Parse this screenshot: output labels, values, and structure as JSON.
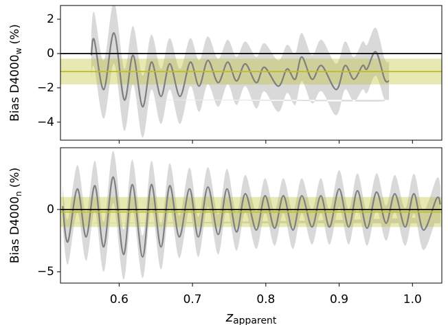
{
  "chart_data": [
    {
      "type": "line",
      "ylabel": [
        "Bias D4000",
        "w",
        "(%)"
      ],
      "xlim": [
        0.52,
        1.04
      ],
      "ylim": [
        -5.05,
        2.8
      ],
      "yticks": [
        {
          "value": -4,
          "label": "−4"
        },
        {
          "value": -2,
          "label": "−2"
        },
        0,
        2
      ],
      "x": [
        0.562,
        0.566,
        0.579,
        0.593,
        0.607,
        0.619,
        0.632,
        0.644,
        0.657,
        0.669,
        0.683,
        0.697,
        0.709,
        0.721,
        0.735,
        0.748,
        0.76,
        0.772,
        0.787,
        0.798,
        0.817,
        0.829,
        0.84,
        0.849,
        0.863,
        0.876,
        0.896,
        0.908,
        0.92,
        0.932,
        0.938,
        0.95,
        0.962,
        0.968
      ],
      "series": [
        {
          "color": "#7f7f7f",
          "band_color": "#d9d9d9",
          "values": [
            -0.1,
            0.8,
            -2.1,
            1.2,
            -2.7,
            -0.1,
            -3.1,
            -0.5,
            -2.5,
            -0.6,
            -2.5,
            -0.5,
            -1.9,
            -0.4,
            -1.7,
            -0.5,
            -1.6,
            -0.6,
            -1.7,
            -0.8,
            -1.9,
            -0.9,
            -1.5,
            -0.2,
            -1.5,
            -0.7,
            -2.1,
            -0.7,
            -1.5,
            -0.7,
            -0.9,
            0.1,
            -1.5,
            -1.6
          ],
          "error": [
            1.3,
            1.6,
            1.7,
            1.8,
            1.8,
            1.7,
            1.8,
            1.6,
            1.6,
            1.5,
            1.6,
            1.4,
            1.5,
            1.4,
            1.4,
            1.3,
            1.4,
            1.3,
            1.5,
            1.4,
            1.5,
            1.4,
            1.5,
            1.4,
            1.4,
            1.5,
            1.5,
            1.4,
            1.3,
            1.4,
            1.4,
            1.4,
            1.2,
            1.1
          ]
        }
      ],
      "zero_line": 0,
      "zero_color": "#000000",
      "mean": -1.05,
      "band": [
        -1.8,
        -0.3
      ],
      "mean_color": "#bcbd22"
    },
    {
      "type": "line",
      "ylabel": [
        "Bias D4000",
        "n",
        "(%)"
      ],
      "xlabel": [
        "z",
        "apparent"
      ],
      "xlim": [
        0.52,
        1.04
      ],
      "ylim": [
        -5.9,
        4.95
      ],
      "yticks": [
        {
          "value": -5,
          "label": "−5"
        },
        0
      ],
      "xticks": [
        0.6,
        0.7,
        0.8,
        0.9,
        {
          "value": 1,
          "label": "1.0"
        }
      ],
      "x": [
        0.523,
        0.53,
        0.543,
        0.555,
        0.567,
        0.579,
        0.592,
        0.606,
        0.618,
        0.632,
        0.644,
        0.657,
        0.669,
        0.682,
        0.696,
        0.708,
        0.721,
        0.735,
        0.747,
        0.76,
        0.772,
        0.787,
        0.799,
        0.812,
        0.824,
        0.837,
        0.849,
        0.863,
        0.875,
        0.887,
        0.9,
        0.913,
        0.925,
        0.938,
        0.951,
        0.964,
        0.976,
        0.99,
        1.002,
        1.015,
        1.033,
        1.038
      ],
      "series": [
        {
          "color": "#7f7f7f",
          "band_color": "#d9d9d9",
          "values": [
            0.27,
            -2.6,
            1.65,
            -2.2,
            1.9,
            -3.0,
            2.6,
            -3.6,
            2.0,
            -3.8,
            2.0,
            -3.0,
            1.9,
            -2.2,
            1.65,
            -2.2,
            1.8,
            -2.0,
            1.65,
            -1.8,
            1.26,
            -1.65,
            1.1,
            -1.5,
            1.1,
            -1.65,
            1.1,
            -1.4,
            1.1,
            -1.4,
            1.65,
            -1.4,
            1.5,
            -1.5,
            1.4,
            -1.1,
            1.26,
            -1.4,
            1.26,
            -1.65,
            0.9,
            0.4
          ],
          "error": [
            1.6,
            1.8,
            1.9,
            1.9,
            2.0,
            2.0,
            2.1,
            2.0,
            2.0,
            1.7,
            1.9,
            1.8,
            1.8,
            1.7,
            1.7,
            1.6,
            1.6,
            1.6,
            1.6,
            1.5,
            1.5,
            1.5,
            1.4,
            1.4,
            1.4,
            1.5,
            1.4,
            1.4,
            1.4,
            1.4,
            1.5,
            1.4,
            1.4,
            1.4,
            1.5,
            1.4,
            1.5,
            1.5,
            1.6,
            1.6,
            1.6,
            1.5
          ]
        }
      ],
      "zero_line": 0,
      "zero_color": "#000000",
      "mean": -0.2,
      "band": [
        -1.4,
        1.0
      ],
      "mean_color": "#bcbd22"
    }
  ]
}
